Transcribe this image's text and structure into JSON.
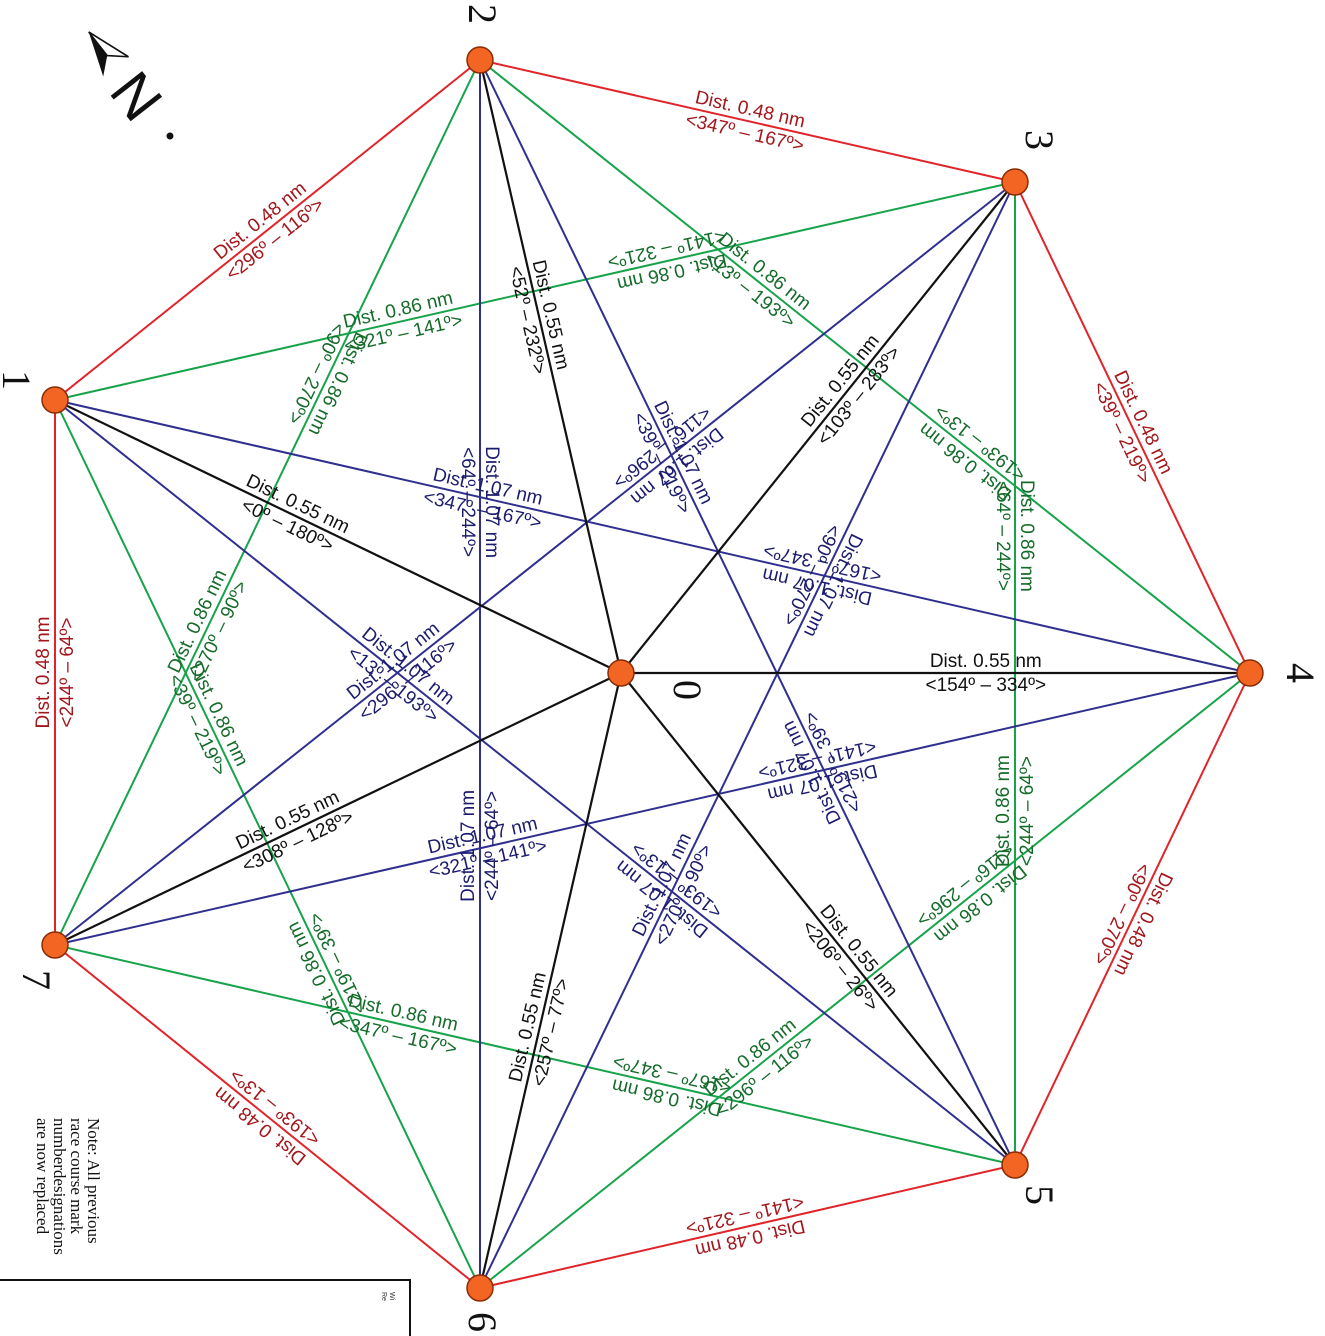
{
  "colors": {
    "perimeter": "#e0242a",
    "perimeter_text": "#a3161b",
    "skip_one": "#16a34a",
    "skip_one_text": "#156b2a",
    "skip_two": "#2f2f8f",
    "skip_two_text": "#1c1c6e",
    "center": "#111111",
    "center_text": "#111111",
    "mark_fill": "#f26522",
    "mark_stroke": "#8a2c05"
  },
  "marks": [
    "0",
    "1",
    "2",
    "3",
    "4",
    "5",
    "6",
    "7"
  ],
  "edges": [
    {
      "from": "1",
      "to": "2",
      "kind": "perimeter",
      "dist": "Dist. 0.48 nm",
      "bearing": "<296º – 116º>"
    },
    {
      "from": "2",
      "to": "3",
      "kind": "perimeter",
      "dist": "Dist. 0.48 nm",
      "bearing": "<347º – 167º>"
    },
    {
      "from": "3",
      "to": "4",
      "kind": "perimeter",
      "dist": "Dist. 0.48 nm",
      "bearing": "<39º – 219º>"
    },
    {
      "from": "4",
      "to": "5",
      "kind": "perimeter",
      "dist": "Dist. 0.48 nm",
      "bearing": "<90º – 270º>"
    },
    {
      "from": "5",
      "to": "6",
      "kind": "perimeter",
      "dist": "Dist. 0.48 nm",
      "bearing": "<141º – 321º>"
    },
    {
      "from": "6",
      "to": "7",
      "kind": "perimeter",
      "dist": "Dist. 0.48 nm",
      "bearing": "<193º – 13º>"
    },
    {
      "from": "7",
      "to": "1",
      "kind": "perimeter",
      "dist": "Dist. 0.48 nm",
      "bearing": "<244º – 64º>"
    },
    {
      "from": "1",
      "to": "3",
      "kind": "skip_one",
      "dist": "Dist. 0.86 nm",
      "bearing": "<321º – 141º>"
    },
    {
      "from": "3",
      "to": "1",
      "kind": "skip_one",
      "dist": "Dist. 0.86 nm",
      "bearing": "<141º – 321º>"
    },
    {
      "from": "2",
      "to": "4",
      "kind": "skip_one",
      "dist": "Dist. 0.86 nm",
      "bearing": "<13º – 193º>"
    },
    {
      "from": "4",
      "to": "2",
      "kind": "skip_one",
      "dist": "Dist. 0.86 nm",
      "bearing": "<193º – 13º>"
    },
    {
      "from": "3",
      "to": "5",
      "kind": "skip_one",
      "dist": "Dist. 0.86 nm",
      "bearing": "<64º – 244º>"
    },
    {
      "from": "5",
      "to": "3",
      "kind": "skip_one",
      "dist": "Dist. 0.86 nm",
      "bearing": "<244º – 64º>"
    },
    {
      "from": "4",
      "to": "6",
      "kind": "skip_one",
      "dist": "Dist. 0.86 nm",
      "bearing": "<116º – 296º>"
    },
    {
      "from": "6",
      "to": "4",
      "kind": "skip_one",
      "dist": "Dist. 0.86 nm",
      "bearing": "<296º – 116º>"
    },
    {
      "from": "5",
      "to": "7",
      "kind": "skip_one",
      "dist": "Dist. 0.86 nm",
      "bearing": "<167º – 347º>"
    },
    {
      "from": "7",
      "to": "5",
      "kind": "skip_one",
      "dist": "Dist. 0.86 nm",
      "bearing": "<347º – 167º>"
    },
    {
      "from": "6",
      "to": "1",
      "kind": "skip_one",
      "dist": "Dist. 0.86 nm",
      "bearing": "<219º – 39º>"
    },
    {
      "from": "1",
      "to": "6",
      "kind": "skip_one",
      "dist": "Dist. 0.86 nm",
      "bearing": "<39º – 219º>"
    },
    {
      "from": "7",
      "to": "2",
      "kind": "skip_one",
      "dist": "Dist. 0.86 nm",
      "bearing": "<270º – 90º>"
    },
    {
      "from": "2",
      "to": "7",
      "kind": "skip_one",
      "dist": "Dist. 0.86 nm",
      "bearing": "<90º – 270º>"
    },
    {
      "from": "1",
      "to": "4",
      "kind": "skip_two",
      "dist": "Dist. 1.07 nm",
      "bearing": "<347º – 167º>"
    },
    {
      "from": "4",
      "to": "1",
      "kind": "skip_two",
      "dist": "Dist. 1.07 nm",
      "bearing": "<167º – 347º>"
    },
    {
      "from": "1",
      "to": "5",
      "kind": "skip_two",
      "dist": "Dist. 1.07 nm",
      "bearing": "<13º – 193º>"
    },
    {
      "from": "5",
      "to": "1",
      "kind": "skip_two",
      "dist": "Dist. 1.07 nm",
      "bearing": "<193º – 13º>"
    },
    {
      "from": "2",
      "to": "5",
      "kind": "skip_two",
      "dist": "Dist. 1.07 nm",
      "bearing": "<39º – 219º>"
    },
    {
      "from": "5",
      "to": "2",
      "kind": "skip_two",
      "dist": "Dist. 1.07 nm",
      "bearing": "<219º – 39º>"
    },
    {
      "from": "2",
      "to": "6",
      "kind": "skip_two",
      "dist": "Dist. 1.07 nm",
      "bearing": "<64º – 244º>"
    },
    {
      "from": "6",
      "to": "2",
      "kind": "skip_two",
      "dist": "Dist. 1.07 nm",
      "bearing": "<244º – 64º>"
    },
    {
      "from": "3",
      "to": "6",
      "kind": "skip_two",
      "dist": "Dist. 1.07 nm",
      "bearing": "<90º – 270º>"
    },
    {
      "from": "6",
      "to": "3",
      "kind": "skip_two",
      "dist": "Dist. 1.07 nm",
      "bearing": "<270º – 90º>"
    },
    {
      "from": "3",
      "to": "7",
      "kind": "skip_two",
      "dist": "Dist. 1.07 nm",
      "bearing": "<116º – 296º>"
    },
    {
      "from": "7",
      "to": "3",
      "kind": "skip_two",
      "dist": "Dist. 1.07 nm",
      "bearing": "<296º – 116º>"
    },
    {
      "from": "4",
      "to": "7",
      "kind": "skip_two",
      "dist": "Dist. 1.07 nm",
      "bearing": "<141º – 321º>"
    },
    {
      "from": "7",
      "to": "4",
      "kind": "skip_two",
      "dist": "Dist. 1.07 nm",
      "bearing": "<321º – 141º>"
    },
    {
      "from": "1",
      "to": "0",
      "kind": "center",
      "dist": "Dist. 0.55 nm",
      "bearing": "<0º – 180º>"
    },
    {
      "from": "2",
      "to": "0",
      "kind": "center",
      "dist": "Dist. 0.55 nm",
      "bearing": "<52º – 232º>"
    },
    {
      "from": "0",
      "to": "3",
      "kind": "center",
      "dist": "Dist. 0.55 nm",
      "bearing": "<103º – 283º>"
    },
    {
      "from": "0",
      "to": "4",
      "kind": "center",
      "dist": "Dist. 0.55 nm",
      "bearing": "<154º – 334º>"
    },
    {
      "from": "0",
      "to": "5",
      "kind": "center",
      "dist": "Dist. 0.55 nm",
      "bearing": "<206º – 26º>"
    },
    {
      "from": "6",
      "to": "0",
      "kind": "center",
      "dist": "Dist. 0.55 nm",
      "bearing": "<257º – 77º>"
    },
    {
      "from": "7",
      "to": "0",
      "kind": "center",
      "dist": "Dist. 0.55 nm",
      "bearing": "<308º – 128º>"
    }
  ],
  "north_label": "N",
  "note": {
    "lines": [
      "Note: All previous",
      "race course mark",
      "numberdesignations",
      "are now replaced"
    ]
  },
  "corner_box": {
    "lines": [
      "Wi",
      "Re"
    ]
  }
}
